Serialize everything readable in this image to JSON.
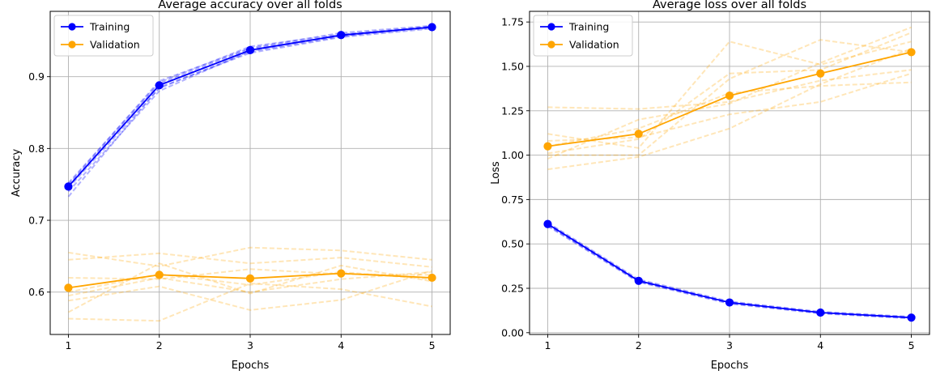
{
  "colors": {
    "training": "#0000ff",
    "validation": "#ffa500",
    "grid": "#b0b0b0"
  },
  "chart_data": [
    {
      "type": "line",
      "title": "Average accuracy over all folds",
      "xlabel": "Epochs",
      "ylabel": "Accuracy",
      "x": [
        1,
        2,
        3,
        4,
        5
      ],
      "xticks": [
        "1",
        "2",
        "3",
        "4",
        "5"
      ],
      "yticks": [
        "0.6",
        "0.7",
        "0.8",
        "0.9"
      ],
      "ytick_values": [
        0.6,
        0.7,
        0.8,
        0.9
      ],
      "xlim": [
        0.8,
        5.2
      ],
      "ylim": [
        0.541,
        0.991
      ],
      "grid": true,
      "legend": "top-left",
      "series": [
        {
          "name": "Training",
          "key": "training",
          "values": [
            0.747,
            0.888,
            0.937,
            0.958,
            0.969
          ]
        },
        {
          "name": "Validation",
          "key": "validation",
          "values": [
            0.606,
            0.624,
            0.619,
            0.626,
            0.62
          ]
        }
      ],
      "folds": {
        "training": [
          [
            0.733,
            0.885,
            0.933,
            0.955,
            0.967
          ],
          [
            0.74,
            0.88,
            0.936,
            0.957,
            0.968
          ],
          [
            0.745,
            0.884,
            0.935,
            0.956,
            0.97
          ],
          [
            0.748,
            0.89,
            0.939,
            0.957,
            0.969
          ],
          [
            0.75,
            0.894,
            0.94,
            0.961,
            0.971
          ],
          [
            0.752,
            0.892,
            0.942,
            0.959,
            0.97
          ]
        ],
        "validation": [
          [
            0.655,
            0.636,
            0.662,
            0.658,
            0.645
          ],
          [
            0.645,
            0.654,
            0.64,
            0.648,
            0.635
          ],
          [
            0.62,
            0.618,
            0.632,
            0.625,
            0.624
          ],
          [
            0.6,
            0.625,
            0.61,
            0.628,
            0.618
          ],
          [
            0.595,
            0.62,
            0.6,
            0.618,
            0.628
          ],
          [
            0.572,
            0.64,
            0.598,
            0.637,
            0.615
          ],
          [
            0.588,
            0.608,
            0.575,
            0.589,
            0.63
          ],
          [
            0.563,
            0.56,
            0.612,
            0.604,
            0.58
          ]
        ]
      }
    },
    {
      "type": "line",
      "title": "Average loss over all folds",
      "xlabel": "Epochs",
      "ylabel": "Loss",
      "x": [
        1,
        2,
        3,
        4,
        5
      ],
      "xticks": [
        "1",
        "2",
        "3",
        "4",
        "5"
      ],
      "yticks": [
        "0.00",
        "0.25",
        "0.50",
        "0.75",
        "1.00",
        "1.25",
        "1.50",
        "1.75"
      ],
      "ytick_values": [
        0,
        0.25,
        0.5,
        0.75,
        1.0,
        1.25,
        1.5,
        1.75
      ],
      "xlim": [
        0.8,
        5.2
      ],
      "ylim": [
        -0.01,
        1.81
      ],
      "grid": true,
      "legend": "top-left",
      "series": [
        {
          "name": "Training",
          "key": "training",
          "values": [
            0.612,
            0.292,
            0.17,
            0.113,
            0.085
          ]
        },
        {
          "name": "Validation",
          "key": "validation",
          "values": [
            1.05,
            1.12,
            1.335,
            1.46,
            1.58
          ]
        }
      ],
      "folds": {
        "training": [
          [
            0.6,
            0.285,
            0.163,
            0.108,
            0.08
          ],
          [
            0.608,
            0.29,
            0.168,
            0.111,
            0.083
          ],
          [
            0.615,
            0.295,
            0.172,
            0.115,
            0.087
          ],
          [
            0.62,
            0.3,
            0.176,
            0.118,
            0.09
          ],
          [
            0.605,
            0.288,
            0.167,
            0.112,
            0.084
          ]
        ],
        "validation": [
          [
            1.27,
            1.26,
            1.3,
            1.42,
            1.48
          ],
          [
            1.12,
            1.04,
            1.64,
            1.51,
            1.64
          ],
          [
            1.08,
            1.1,
            1.23,
            1.3,
            1.46
          ],
          [
            1.0,
            1.0,
            1.43,
            1.65,
            1.58
          ],
          [
            0.98,
            1.2,
            1.29,
            1.52,
            1.72
          ],
          [
            0.92,
            0.99,
            1.15,
            1.4,
            1.6
          ],
          [
            1.05,
            1.15,
            1.35,
            1.39,
            1.41
          ],
          [
            1.01,
            1.09,
            1.46,
            1.48,
            1.69
          ]
        ]
      }
    }
  ]
}
